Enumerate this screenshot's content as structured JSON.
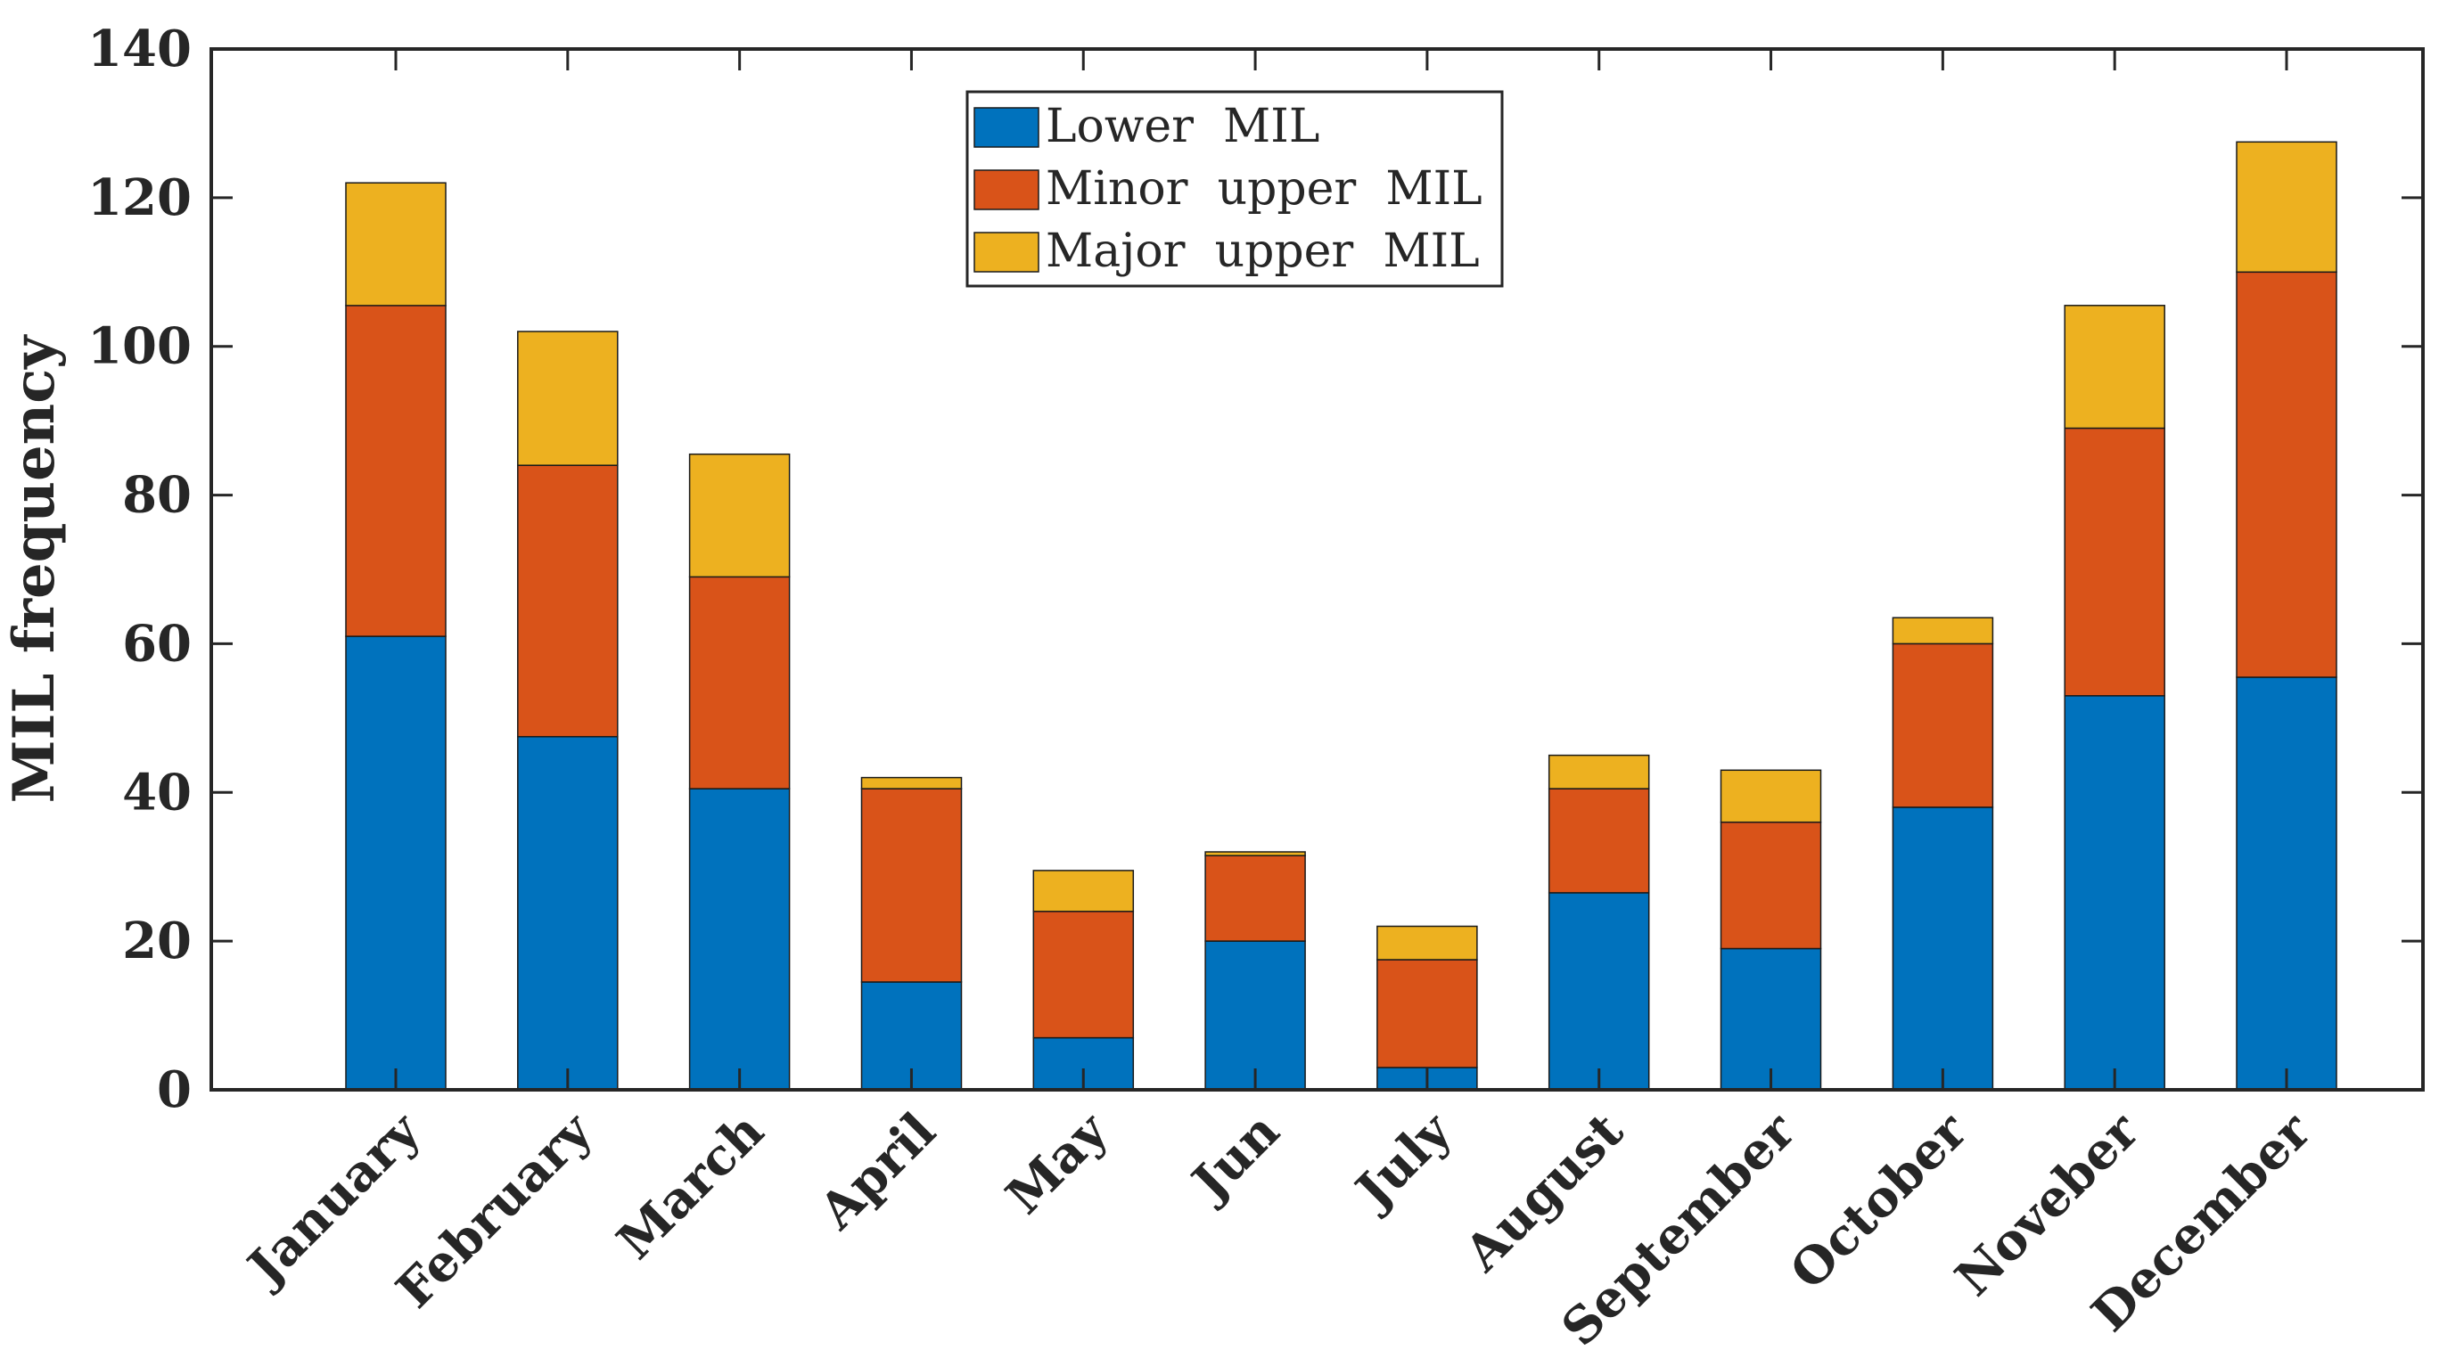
{
  "chart_data": {
    "type": "bar",
    "stacked": true,
    "title": "",
    "xlabel": "",
    "ylabel": "MIL  frequency",
    "ylim": [
      0,
      140
    ],
    "yticks": [
      0,
      20,
      40,
      60,
      80,
      100,
      120,
      140
    ],
    "categories": [
      "January",
      "February",
      "March",
      "April",
      "May",
      "Jun",
      "July",
      "August",
      "September",
      "October",
      "Noveber",
      "December"
    ],
    "series": [
      {
        "name": "Lower  MIL",
        "color": "#0072BD",
        "values": [
          61,
          47.5,
          40.5,
          14.5,
          7,
          20,
          3,
          26.5,
          19,
          38,
          53,
          55.5
        ]
      },
      {
        "name": "Minor  upper  MIL",
        "color": "#D95319",
        "values": [
          44.5,
          36.5,
          28.5,
          26,
          17,
          11.5,
          14.5,
          14,
          17,
          22,
          36,
          54.5
        ]
      },
      {
        "name": "Major  upper  MIL",
        "color": "#EDB120",
        "values": [
          16.5,
          18,
          16.5,
          1.5,
          5.5,
          0.5,
          4.5,
          4.5,
          7,
          3.5,
          16.5,
          17.5
        ]
      }
    ],
    "legend": "top-center",
    "grid": false
  }
}
